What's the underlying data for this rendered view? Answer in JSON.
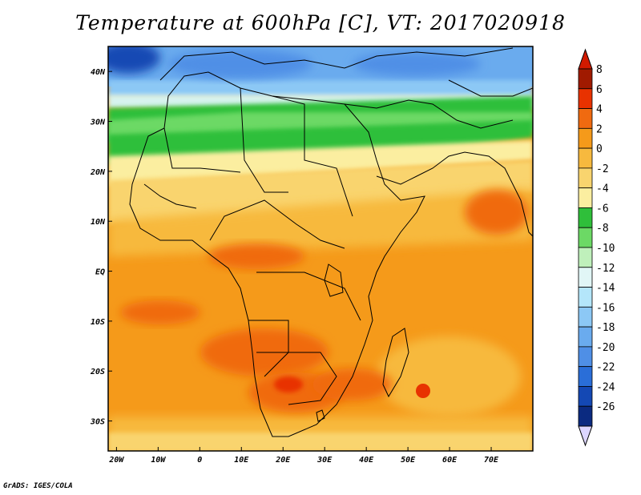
{
  "title": "Temperature at 600hPa [C], VT: 2017020918",
  "credit": "GrADS: IGES/COLA",
  "map": {
    "lon_range": [
      -22,
      80
    ],
    "lat_range": [
      -36,
      45
    ],
    "lon_ticks": [
      {
        "value": -20,
        "label": "20W"
      },
      {
        "value": -10,
        "label": "10W"
      },
      {
        "value": 0,
        "label": "0"
      },
      {
        "value": 10,
        "label": "10E"
      },
      {
        "value": 20,
        "label": "20E"
      },
      {
        "value": 30,
        "label": "30E"
      },
      {
        "value": 40,
        "label": "40E"
      },
      {
        "value": 50,
        "label": "50E"
      },
      {
        "value": 60,
        "label": "60E"
      },
      {
        "value": 70,
        "label": "70E"
      }
    ],
    "lat_ticks": [
      {
        "value": 40,
        "label": "40N"
      },
      {
        "value": 30,
        "label": "30N"
      },
      {
        "value": 20,
        "label": "20N"
      },
      {
        "value": 10,
        "label": "10N"
      },
      {
        "value": 0,
        "label": "EQ"
      },
      {
        "value": -10,
        "label": "10S"
      },
      {
        "value": -20,
        "label": "20S"
      },
      {
        "value": -30,
        "label": "30S"
      }
    ]
  },
  "colorbar": {
    "levels": [
      {
        "label": "8",
        "color": "#a01a00"
      },
      {
        "label": "6",
        "color": "#e83200"
      },
      {
        "label": "4",
        "color": "#f06a10"
      },
      {
        "label": "2",
        "color": "#f59a1a"
      },
      {
        "label": "0",
        "color": "#f7b93e"
      },
      {
        "label": "-2",
        "color": "#f9d46e"
      },
      {
        "label": "-4",
        "color": "#fbeea0"
      },
      {
        "label": "-6",
        "color": "#2fbf3a"
      },
      {
        "label": "-8",
        "color": "#6cd965"
      },
      {
        "label": "-10",
        "color": "#bff0bb"
      },
      {
        "label": "-12",
        "color": "#e1f6f6"
      },
      {
        "label": "-14",
        "color": "#b4e6fa"
      },
      {
        "label": "-16",
        "color": "#8cc8f5"
      },
      {
        "label": "-18",
        "color": "#6aabee"
      },
      {
        "label": "-20",
        "color": "#4f8fe6"
      },
      {
        "label": "-22",
        "color": "#2a6ed8"
      },
      {
        "label": "-24",
        "color": "#1448b4"
      },
      {
        "label": "-26",
        "color": "#0b2a80"
      }
    ],
    "under_color": "#dcd6ff",
    "over_color": "#d21a00"
  }
}
